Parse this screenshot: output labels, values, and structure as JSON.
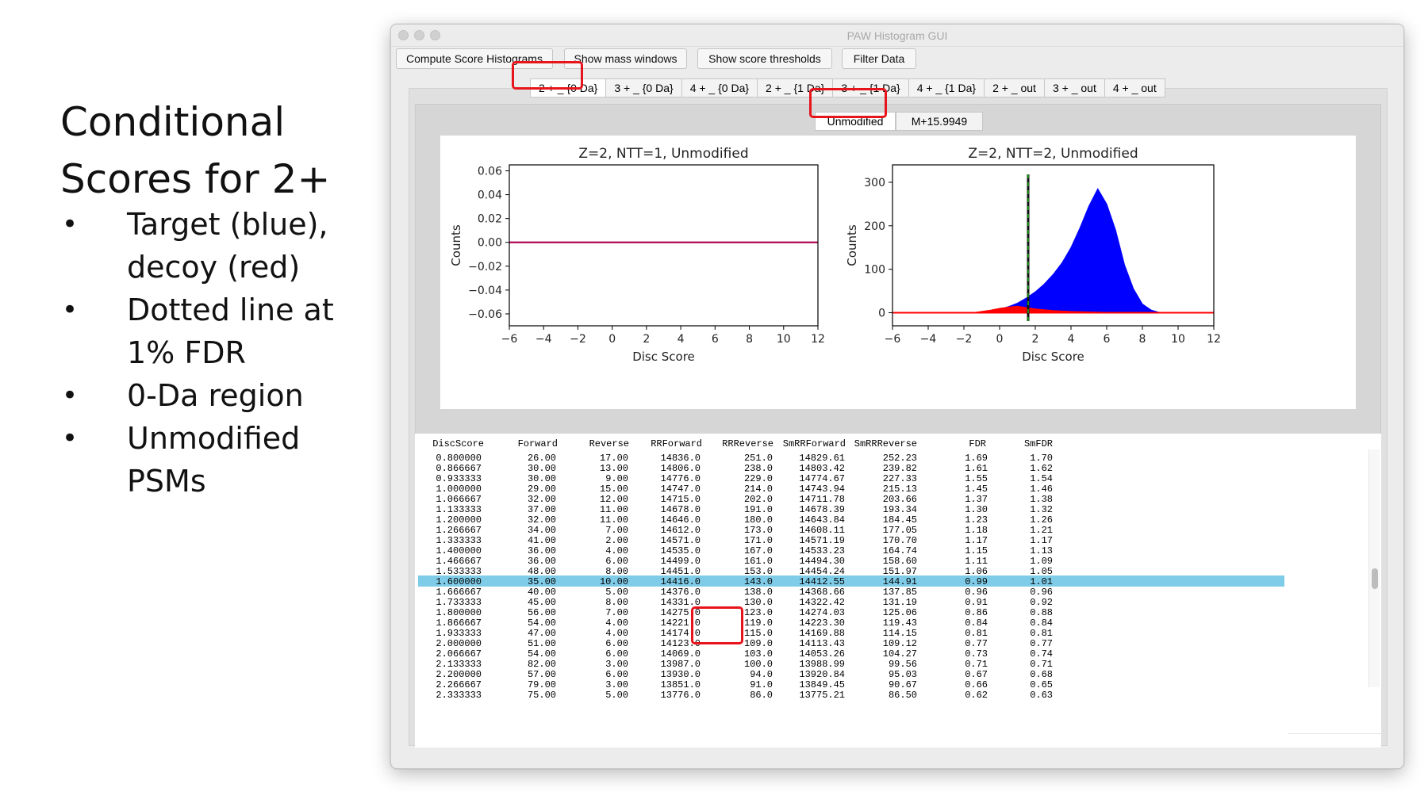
{
  "slide": {
    "title": "Conditional Scores for 2+",
    "bullets": [
      "Target (blue), decoy (red)",
      "Dotted line at 1% FDR",
      "0-Da region",
      "Unmodified PSMs"
    ]
  },
  "window": {
    "title": "PAW Histogram GUI",
    "buttons": [
      "Compute Score Histograms",
      "Show mass windows",
      "Show score thresholds",
      "Filter Data"
    ],
    "tabs": [
      "2 + _ {0 Da}",
      "3 + _ {0 Da}",
      "4 + _ {0 Da}",
      "2 + _ {1 Da}",
      "3 + _ {1 Da}",
      "4 + _ {1 Da}",
      "2 + _ out",
      "3 + _ out",
      "4 + _ out"
    ],
    "selected_tab": "2 + _ {0 Da}",
    "subtabs": [
      "Unmodified",
      "M+15.9949"
    ],
    "selected_subtab": "Unmodified"
  },
  "chart_data": [
    {
      "type": "line",
      "title": "Z=2, NTT=1, Unmodified",
      "xlabel": "Disc Score",
      "ylabel": "Counts",
      "xlim": [
        -6,
        12
      ],
      "ylim": [
        -0.07,
        0.065
      ],
      "xticks": [
        -6,
        -4,
        -2,
        0,
        2,
        4,
        6,
        8,
        10,
        12
      ],
      "yticks": [
        -0.06,
        -0.04,
        -0.02,
        0.0,
        0.02,
        0.04,
        0.06
      ],
      "ytick_labels": [
        "−0.06",
        "−0.04",
        "−0.02",
        "0.00",
        "0.02",
        "0.04",
        "0.06"
      ],
      "xtick_labels": [
        "−6",
        "−4",
        "−2",
        "0",
        "2",
        "4",
        "6",
        "8",
        "10",
        "12"
      ],
      "series": [
        {
          "color": "#0000ff",
          "x": [
            -6,
            12
          ],
          "y": [
            0,
            0
          ]
        },
        {
          "color": "#ff0000",
          "x": [
            -6,
            12
          ],
          "y": [
            0,
            0
          ]
        }
      ]
    },
    {
      "type": "area",
      "title": "Z=2, NTT=2, Unmodified",
      "xlabel": "Disc Score",
      "ylabel": "Counts",
      "xlim": [
        -6,
        12
      ],
      "ylim": [
        -30,
        340
      ],
      "xticks": [
        -6,
        -4,
        -2,
        0,
        2,
        4,
        6,
        8,
        10,
        12
      ],
      "yticks": [
        0,
        100,
        200,
        300
      ],
      "xtick_labels": [
        "−6",
        "−4",
        "−2",
        "0",
        "2",
        "4",
        "6",
        "8",
        "10",
        "12"
      ],
      "ytick_labels": [
        "0",
        "100",
        "200",
        "300"
      ],
      "threshold_x": 1.6,
      "series": [
        {
          "color": "#0000ff",
          "x": [
            -1.5,
            -1,
            -0.5,
            0,
            0.5,
            1,
            1.5,
            2,
            2.5,
            3,
            3.5,
            4,
            4.5,
            5,
            5.5,
            6,
            6.5,
            7,
            7.5,
            8,
            8.5,
            9
          ],
          "y": [
            0,
            2,
            4,
            8,
            14,
            22,
            34,
            48,
            66,
            88,
            115,
            150,
            195,
            245,
            285,
            250,
            190,
            110,
            55,
            20,
            6,
            0
          ]
        },
        {
          "color": "#ff0000",
          "x": [
            -1.5,
            -1,
            -0.5,
            0,
            0.5,
            1,
            1.5,
            2,
            2.5,
            3,
            4,
            5,
            6,
            7
          ],
          "y": [
            0,
            3,
            6,
            10,
            13,
            15,
            12,
            9,
            7,
            5,
            3,
            2,
            1,
            0
          ]
        }
      ]
    }
  ],
  "table": {
    "columns": [
      "DiscScore",
      "Forward",
      "Reverse",
      "RRForward",
      "RRReverse",
      "SmRRForward",
      "SmRRReverse",
      "FDR",
      "SmFDR"
    ],
    "rows": [
      [
        "0.800000",
        "26.00",
        "17.00",
        "14836.0",
        "251.0",
        "14829.61",
        "252.23",
        "1.69",
        "1.70"
      ],
      [
        "0.866667",
        "30.00",
        "13.00",
        "14806.0",
        "238.0",
        "14803.42",
        "239.82",
        "1.61",
        "1.62"
      ],
      [
        "0.933333",
        "30.00",
        "9.00",
        "14776.0",
        "229.0",
        "14774.67",
        "227.33",
        "1.55",
        "1.54"
      ],
      [
        "1.000000",
        "29.00",
        "15.00",
        "14747.0",
        "214.0",
        "14743.94",
        "215.13",
        "1.45",
        "1.46"
      ],
      [
        "1.066667",
        "32.00",
        "12.00",
        "14715.0",
        "202.0",
        "14711.78",
        "203.66",
        "1.37",
        "1.38"
      ],
      [
        "1.133333",
        "37.00",
        "11.00",
        "14678.0",
        "191.0",
        "14678.39",
        "193.34",
        "1.30",
        "1.32"
      ],
      [
        "1.200000",
        "32.00",
        "11.00",
        "14646.0",
        "180.0",
        "14643.84",
        "184.45",
        "1.23",
        "1.26"
      ],
      [
        "1.266667",
        "34.00",
        "7.00",
        "14612.0",
        "173.0",
        "14608.11",
        "177.05",
        "1.18",
        "1.21"
      ],
      [
        "1.333333",
        "41.00",
        "2.00",
        "14571.0",
        "171.0",
        "14571.19",
        "170.70",
        "1.17",
        "1.17"
      ],
      [
        "1.400000",
        "36.00",
        "4.00",
        "14535.0",
        "167.0",
        "14533.23",
        "164.74",
        "1.15",
        "1.13"
      ],
      [
        "1.466667",
        "36.00",
        "6.00",
        "14499.0",
        "161.0",
        "14494.30",
        "158.60",
        "1.11",
        "1.09"
      ],
      [
        "1.533333",
        "48.00",
        "8.00",
        "14451.0",
        "153.0",
        "14454.24",
        "151.97",
        "1.06",
        "1.05"
      ],
      [
        "1.600000",
        "35.00",
        "10.00",
        "14416.0",
        "143.0",
        "14412.55",
        "144.91",
        "0.99",
        "1.01"
      ],
      [
        "1.666667",
        "40.00",
        "5.00",
        "14376.0",
        "138.0",
        "14368.66",
        "137.85",
        "0.96",
        "0.96"
      ],
      [
        "1.733333",
        "45.00",
        "8.00",
        "14331.0",
        "130.0",
        "14322.42",
        "131.19",
        "0.91",
        "0.92"
      ],
      [
        "1.800000",
        "56.00",
        "7.00",
        "14275.0",
        "123.0",
        "14274.03",
        "125.06",
        "0.86",
        "0.88"
      ],
      [
        "1.866667",
        "54.00",
        "4.00",
        "14221.0",
        "119.0",
        "14223.30",
        "119.43",
        "0.84",
        "0.84"
      ],
      [
        "1.933333",
        "47.00",
        "4.00",
        "14174.0",
        "115.0",
        "14169.88",
        "114.15",
        "0.81",
        "0.81"
      ],
      [
        "2.000000",
        "51.00",
        "6.00",
        "14123.0",
        "109.0",
        "14113.43",
        "109.12",
        "0.77",
        "0.77"
      ],
      [
        "2.066667",
        "54.00",
        "6.00",
        "14069.0",
        "103.0",
        "14053.26",
        "104.27",
        "0.73",
        "0.74"
      ],
      [
        "2.133333",
        "82.00",
        "3.00",
        "13987.0",
        "100.0",
        "13988.99",
        "99.56",
        "0.71",
        "0.71"
      ],
      [
        "2.200000",
        "57.00",
        "6.00",
        "13930.0",
        "94.0",
        "13920.84",
        "95.03",
        "0.67",
        "0.68"
      ],
      [
        "2.266667",
        "79.00",
        "3.00",
        "13851.0",
        "91.0",
        "13849.45",
        "90.67",
        "0.66",
        "0.65"
      ],
      [
        "2.333333",
        "75.00",
        "5.00",
        "13776.0",
        "86.0",
        "13775.21",
        "86.50",
        "0.62",
        "0.63"
      ]
    ],
    "highlighted_row": "1.600000"
  },
  "colors": {
    "target": "#0000ff",
    "decoy": "#ff0000",
    "threshold": "#1a8a1a",
    "selection": "#7fcce8",
    "annotation": "#e8141c"
  }
}
